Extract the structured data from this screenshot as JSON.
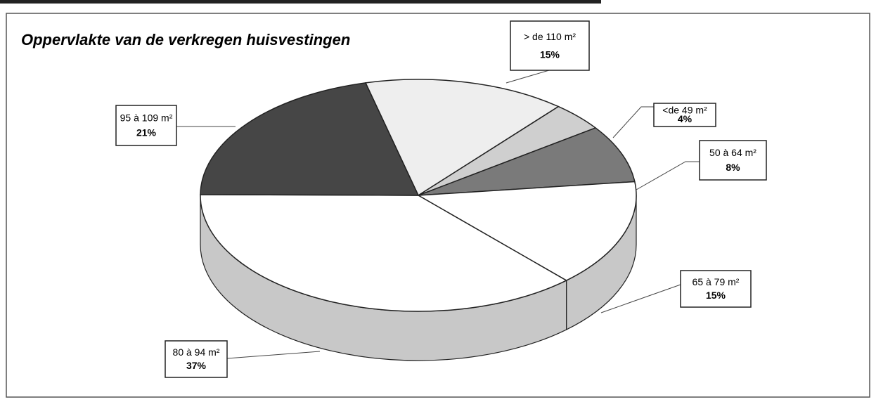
{
  "chart_data": {
    "type": "pie3d",
    "title": "Oppervlakte van de verkregen huisvestingen",
    "categories": [
      "> de 110 m²",
      "<de 49 m²",
      "50 à 64 m²",
      "65 à 79 m²",
      "80 à 94 m²",
      "95 à 109 m²"
    ],
    "values": [
      15,
      4,
      8,
      15,
      37,
      21
    ],
    "value_labels": [
      "15%",
      "4%",
      "8%",
      "15%",
      "37%",
      "21%"
    ],
    "colors": [
      "#eeeeee",
      "#cfcfcf",
      "#7a7a7a",
      "#ffffff",
      "#ffffff",
      "#464646"
    ]
  }
}
